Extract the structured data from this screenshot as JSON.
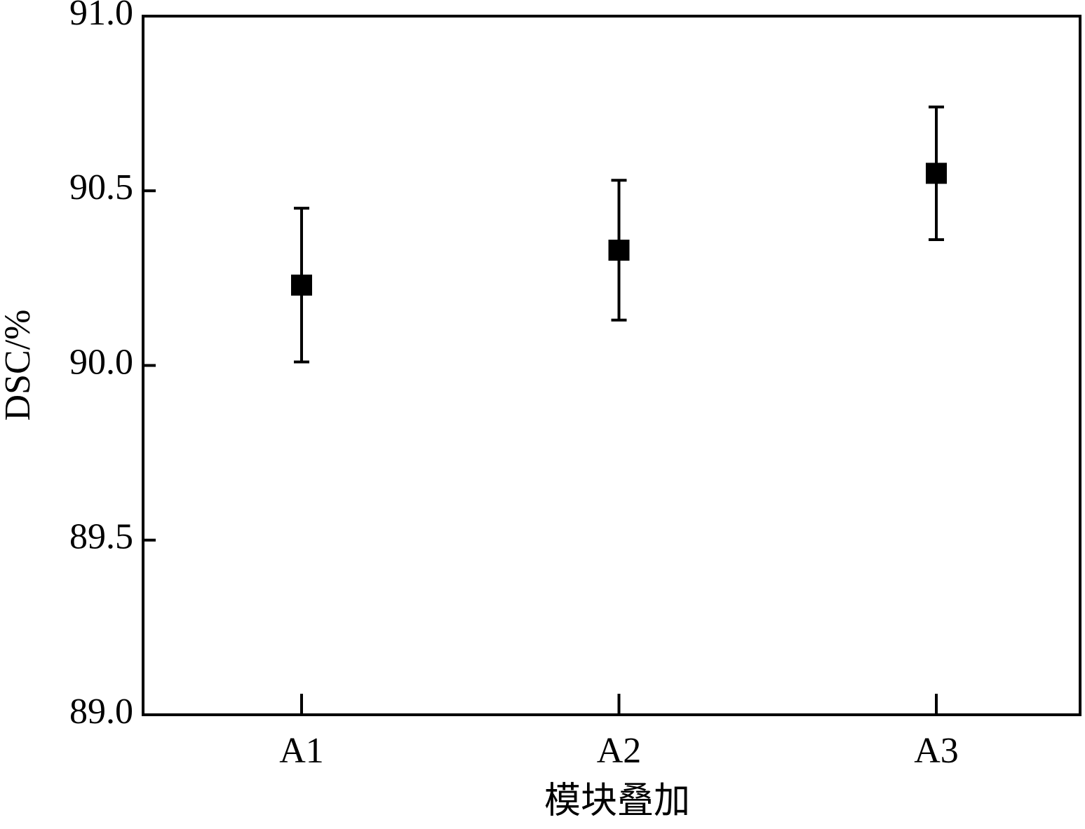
{
  "chart_data": {
    "type": "scatter",
    "x_label": "模块叠加",
    "y_label": "DSC/%",
    "categories": [
      "A1",
      "A2",
      "A3"
    ],
    "series": [
      {
        "color": "#000000",
        "values": [
          90.23,
          90.33,
          90.55
        ],
        "errors": [
          0.22,
          0.2,
          0.19
        ]
      }
    ],
    "ylim": [
      89,
      91
    ],
    "yticks": [
      {
        "value": 89,
        "label": "89.0"
      },
      89.5,
      {
        "value": 90,
        "label": "90.0"
      },
      90.5,
      {
        "value": 91,
        "label": "91.0"
      }
    ],
    "grid": false
  }
}
